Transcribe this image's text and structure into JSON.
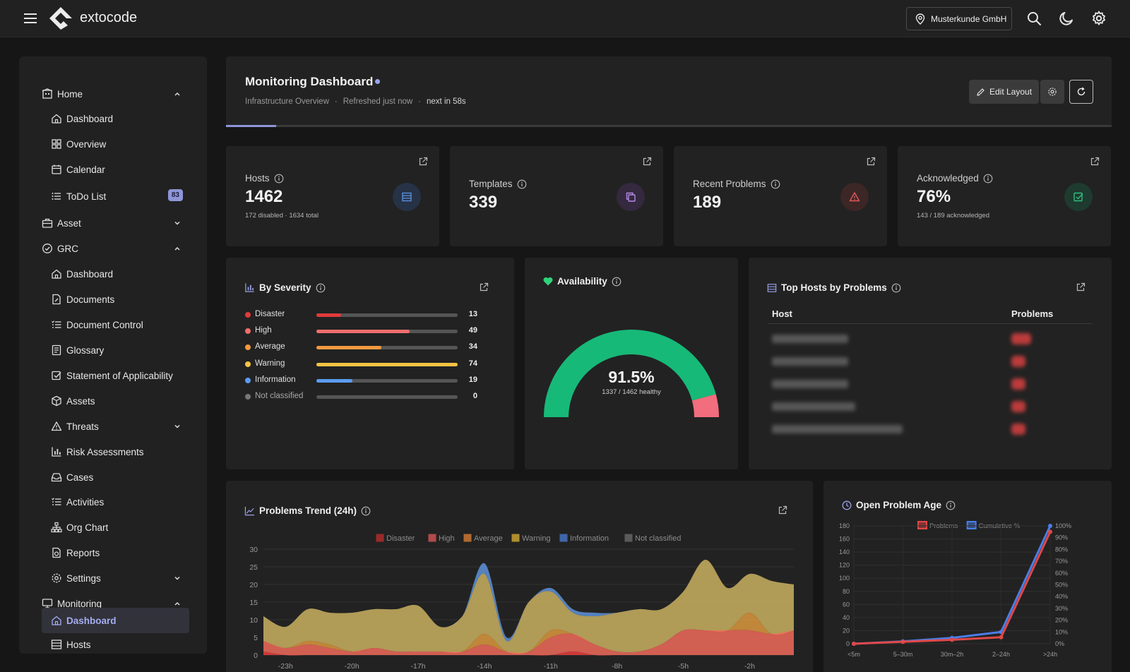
{
  "topbar": {
    "brand": "extocode",
    "customer": "Musterkunde GmbH",
    "icons": [
      "menu-icon",
      "search-icon",
      "moon-icon",
      "gear-icon"
    ]
  },
  "sidebar": {
    "home": {
      "label": "Home",
      "items": [
        {
          "label": "Dashboard",
          "icon": "home-icon"
        },
        {
          "label": "Overview",
          "icon": "grid-icon"
        },
        {
          "label": "Calendar",
          "icon": "calendar-icon"
        },
        {
          "label": "ToDo List",
          "icon": "list-icon",
          "badge": "83"
        }
      ]
    },
    "asset": {
      "label": "Asset"
    },
    "grc": {
      "label": "GRC",
      "items": [
        {
          "label": "Dashboard",
          "icon": "home-icon"
        },
        {
          "label": "Documents",
          "icon": "document-icon"
        },
        {
          "label": "Document Control",
          "icon": "list-check-icon"
        },
        {
          "label": "Glossary",
          "icon": "book-icon"
        },
        {
          "label": "Statement of Applicability",
          "icon": "checkbox-icon"
        },
        {
          "label": "Assets",
          "icon": "cube-icon"
        },
        {
          "label": "Threats",
          "icon": "warning-icon"
        },
        {
          "label": "Risk Assessments",
          "icon": "bar-chart-icon"
        },
        {
          "label": "Cases",
          "icon": "inbox-icon"
        },
        {
          "label": "Activities",
          "icon": "list-check-icon"
        },
        {
          "label": "Org Chart",
          "icon": "org-chart-icon"
        },
        {
          "label": "Reports",
          "icon": "report-icon"
        },
        {
          "label": "Settings",
          "icon": "gear-icon"
        }
      ]
    },
    "monitoring": {
      "label": "Monitoring",
      "items": [
        {
          "label": "Dashboard",
          "icon": "home-icon",
          "active": true
        },
        {
          "label": "Hosts",
          "icon": "server-icon"
        }
      ]
    }
  },
  "header": {
    "title": "Monitoring Dashboard",
    "subtitle_a": "Infrastructure Overview",
    "subtitle_b": "Refreshed just now",
    "subtitle_c": "next in 58s",
    "sep": "·",
    "edit_label": "Edit Layout",
    "refresh_progress": 0.057
  },
  "stats": [
    {
      "label": "Hosts",
      "value": "1462",
      "sub": "172 disabled · 1634 total",
      "icon": "server-icon",
      "accent": "#5b8fd9"
    },
    {
      "label": "Templates",
      "value": "339",
      "sub": "",
      "icon": "copy-icon",
      "accent": "#b48ae6"
    },
    {
      "label": "Recent Problems",
      "value": "189",
      "sub": "",
      "icon": "alert-triangle-icon",
      "accent": "#e05a5a"
    },
    {
      "label": "Acknowledged",
      "value": "76%",
      "sub": "143 / 189 acknowledged",
      "icon": "check-square-icon",
      "accent": "#2fbf7f"
    }
  ],
  "severity": {
    "title": "By Severity",
    "max": 74,
    "rows": [
      {
        "name": "Disaster",
        "value": 13,
        "color": "#e03b3b"
      },
      {
        "name": "High",
        "value": 49,
        "color": "#f26d6d"
      },
      {
        "name": "Average",
        "value": 34,
        "color": "#f39a3f"
      },
      {
        "name": "Warning",
        "value": 74,
        "color": "#f6c343"
      },
      {
        "name": "Information",
        "value": 19,
        "color": "#5b9cf0"
      },
      {
        "name": "Not classified",
        "value": 0,
        "color": "#777777"
      }
    ]
  },
  "availability": {
    "title": "Availability",
    "value": "91.5%",
    "sub": "1337 / 1462 healthy",
    "fraction": 0.915,
    "color_ok": "#17b978",
    "color_bad": "#f26d7d"
  },
  "top_hosts": {
    "title": "Top Hosts by Problems",
    "col_host": "Host",
    "col_problems": "Problems"
  },
  "trend": {
    "title": "Problems Trend (24h)",
    "legend": [
      "Disaster",
      "High",
      "Average",
      "Warning",
      "Information",
      "Not classified"
    ],
    "legend_colors": [
      "#9b2a2a",
      "#b24a4a",
      "#b26a30",
      "#b08e2e",
      "#3e66a6",
      "#5a5a5a"
    ],
    "yticks": [
      "0",
      "5",
      "10",
      "15",
      "20",
      "25",
      "30"
    ],
    "xticks": [
      "-23h",
      "-20h",
      "-17h",
      "-14h",
      "-11h",
      "-8h",
      "-5h",
      "-2h"
    ]
  },
  "age": {
    "title": "Open Problem Age",
    "legend": [
      "Problems",
      "Cumulative %"
    ],
    "yticks_left": [
      "0",
      "20",
      "40",
      "60",
      "80",
      "100",
      "120",
      "140",
      "160",
      "180"
    ],
    "yticks_right": [
      "0%",
      "10%",
      "20%",
      "30%",
      "40%",
      "50%",
      "60%",
      "70%",
      "80%",
      "90%",
      "100%"
    ],
    "xticks": [
      "<5m",
      "5–30m",
      "30m–2h",
      "2–24h",
      ">24h"
    ]
  },
  "chart_data": [
    {
      "type": "area",
      "title": "Problems Trend (24h)",
      "x": [
        "-24h",
        "-23h",
        "-22h",
        "-21h",
        "-20h",
        "-19h",
        "-18h",
        "-17h",
        "-16h",
        "-15h",
        "-14h",
        "-13h",
        "-12h",
        "-11h",
        "-10h",
        "-9h",
        "-8h",
        "-7h",
        "-6h",
        "-5h",
        "-4h",
        "-3h",
        "-2h",
        "-1h",
        "0h"
      ],
      "ylim": [
        0,
        30
      ],
      "stacked": true,
      "series": [
        {
          "name": "Disaster",
          "values": [
            1,
            0,
            0,
            0,
            0,
            0,
            0,
            0,
            0,
            0,
            0,
            0,
            0,
            0,
            1,
            0,
            0,
            0,
            0,
            0,
            0,
            0,
            0,
            0,
            0
          ]
        },
        {
          "name": "High",
          "values": [
            3,
            2,
            3,
            2,
            1,
            2,
            1,
            1,
            1,
            1,
            3,
            1,
            1,
            5,
            5,
            3,
            1,
            1,
            3,
            7,
            7,
            7,
            7,
            6,
            7
          ]
        },
        {
          "name": "Average",
          "values": [
            0,
            0,
            1,
            1,
            0,
            0,
            0,
            0,
            0,
            0,
            3,
            0,
            0,
            2,
            0,
            0,
            0,
            0,
            0,
            0,
            0,
            0,
            5,
            0,
            0
          ]
        },
        {
          "name": "Warning",
          "values": [
            7,
            6,
            9,
            9,
            11,
            11,
            12,
            13,
            7,
            10,
            17,
            3,
            14,
            11,
            6,
            8,
            11,
            12,
            10,
            11,
            20,
            12,
            11,
            15,
            13
          ]
        },
        {
          "name": "Information",
          "values": [
            0,
            0,
            0,
            0,
            0,
            0,
            0,
            0,
            0,
            0,
            3,
            1,
            0,
            1,
            1,
            1,
            0,
            0,
            0,
            0,
            0,
            0,
            0,
            0,
            0
          ]
        },
        {
          "name": "Not classified",
          "values": [
            0,
            0,
            0,
            0,
            0,
            0,
            0,
            0,
            0,
            0,
            0,
            0,
            0,
            0,
            0,
            0,
            0,
            0,
            0,
            0,
            0,
            0,
            0,
            0,
            0
          ]
        }
      ]
    },
    {
      "type": "line",
      "title": "Open Problem Age",
      "categories": [
        "<5m",
        "5–30m",
        "30m–2h",
        "2–24h",
        ">24h"
      ],
      "ylim": [
        0,
        180
      ],
      "y2lim": [
        0,
        100
      ],
      "series": [
        {
          "name": "Problems",
          "values": [
            0,
            3,
            6,
            10,
            171
          ]
        },
        {
          "name": "Cumulative %",
          "values": [
            0,
            2,
            5,
            10,
            100
          ]
        }
      ]
    }
  ]
}
